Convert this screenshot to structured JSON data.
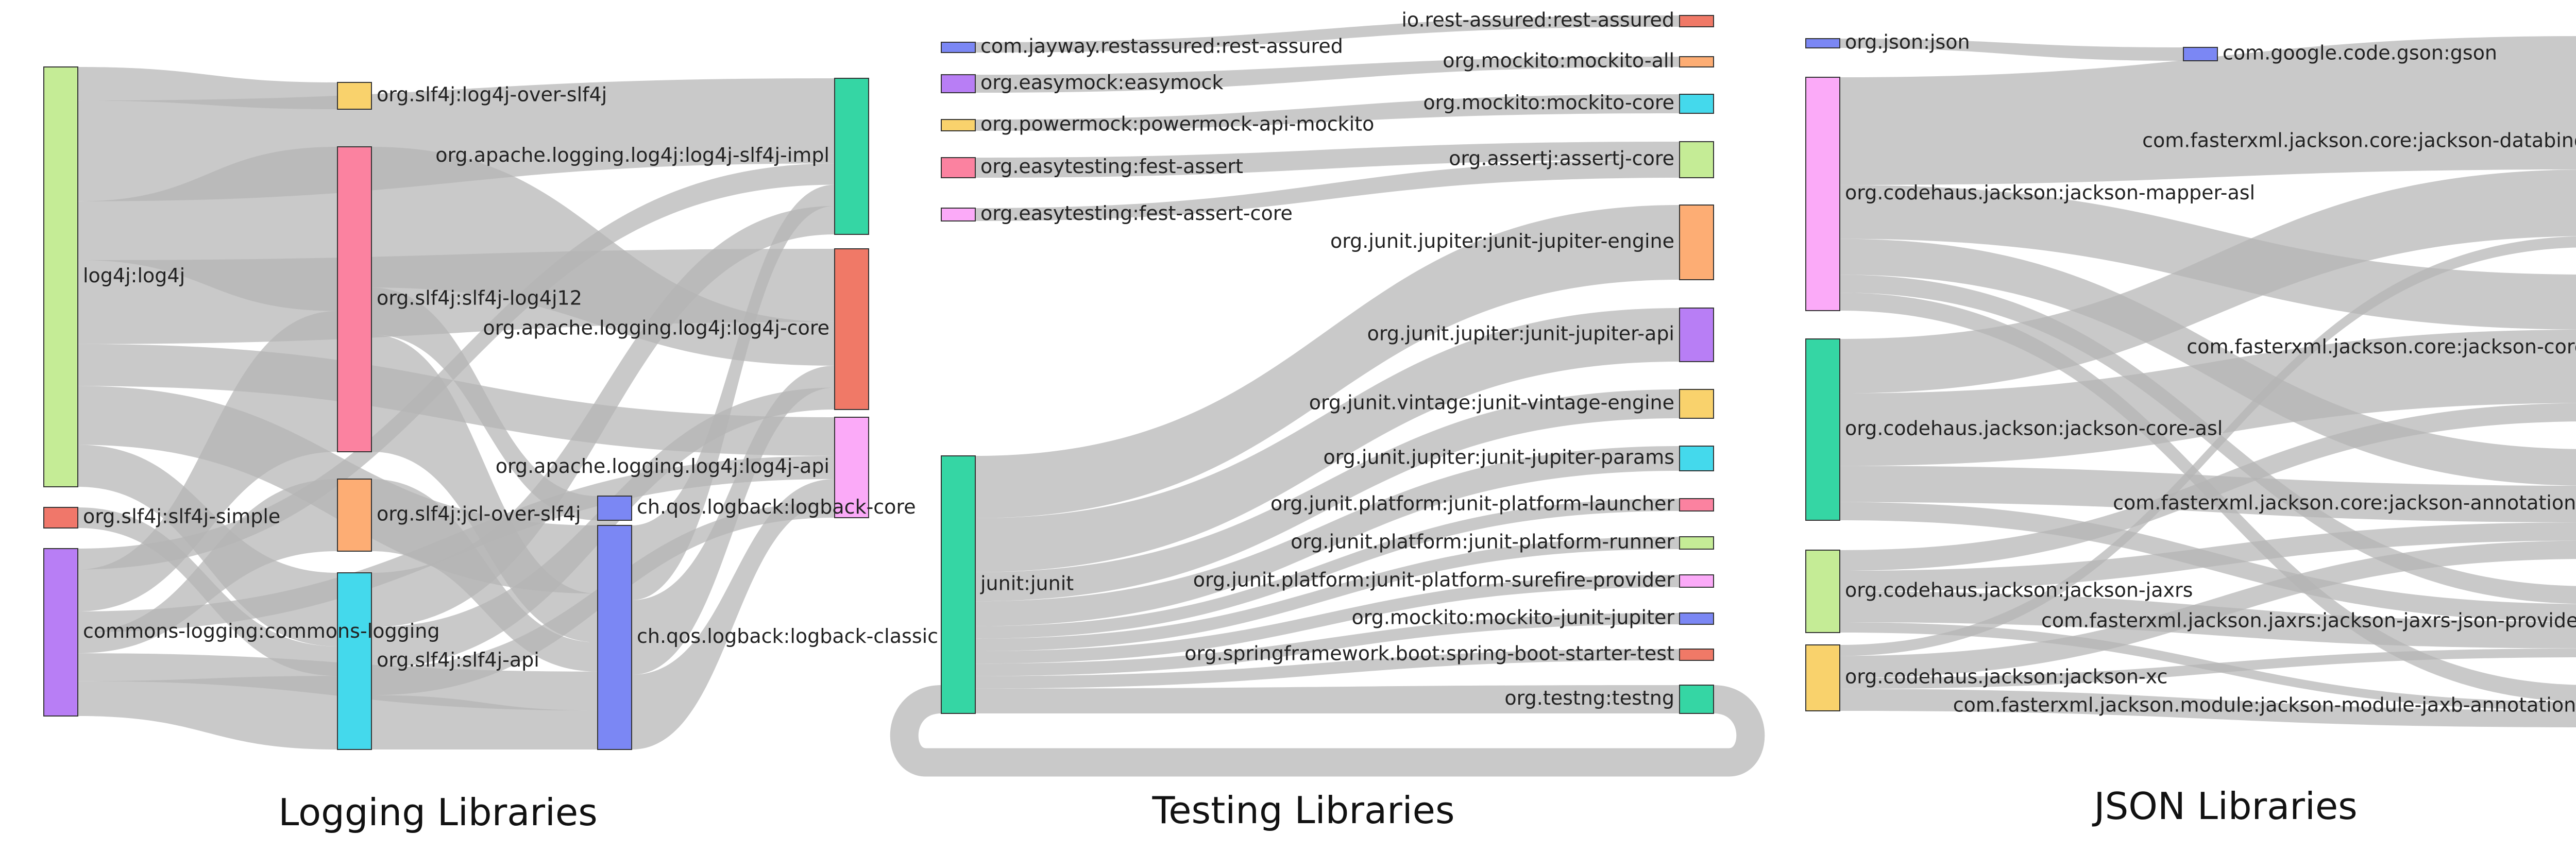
{
  "panels": [
    {
      "id": "logging",
      "title": "Logging Libraries",
      "nodes": [
        {
          "id": "l_log4j",
          "label": "log4j:log4j",
          "color": "#c5ec96",
          "col": 0
        },
        {
          "id": "l_slf4jsimple",
          "label": "org.slf4j:slf4j-simple",
          "color": "#f0776a",
          "col": 0
        },
        {
          "id": "l_jcl",
          "label": "commons-logging:commons-logging",
          "color": "#b87ef5",
          "col": 0
        },
        {
          "id": "l_log4joverslf4j",
          "label": "org.slf4j:log4j-over-slf4j",
          "color": "#f9d26c",
          "col": 1
        },
        {
          "id": "l_slf4jlog4j12",
          "label": "org.slf4j:slf4j-log4j12",
          "color": "#fb82a0",
          "col": 1
        },
        {
          "id": "l_jcloverslf4j",
          "label": "org.slf4j:jcl-over-slf4j",
          "color": "#fdad74",
          "col": 1
        },
        {
          "id": "l_slf4japi",
          "label": "org.slf4j:slf4j-api",
          "color": "#44d9ec",
          "col": 1
        },
        {
          "id": "l_logbackcore",
          "label": "ch.qos.logback:logback-core",
          "color": "#7b87f4",
          "col": 2
        },
        {
          "id": "l_logbackclassic",
          "label": "ch.qos.logback:logback-classic",
          "color": "#7b87f4",
          "col": 2
        },
        {
          "id": "l_log4jslf4jimpl",
          "label": "org.apache.logging.log4j:log4j-slf4j-impl",
          "color": "#35d6a4",
          "col": 3
        },
        {
          "id": "l_log4jcore",
          "label": "org.apache.logging.log4j:log4j-core",
          "color": "#f07967",
          "col": 3
        },
        {
          "id": "l_log4japi",
          "label": "org.apache.logging.log4j:log4j-api",
          "color": "#fbaaf8",
          "col": 3
        }
      ],
      "links": [
        {
          "source": "l_log4j",
          "target": "l_log4jslf4jimpl",
          "value": 12
        },
        {
          "source": "l_log4j",
          "target": "l_log4joverslf4j",
          "value": 4
        },
        {
          "source": "l_log4j",
          "target": "l_log4jcore",
          "value": 10
        },
        {
          "source": "l_log4j",
          "target": "l_slf4jlog4j12",
          "value": 7
        },
        {
          "source": "l_log4j",
          "target": "l_log4japi",
          "value": 5
        },
        {
          "source": "l_log4j",
          "target": "l_logbackclassic",
          "value": 7
        },
        {
          "source": "l_log4j",
          "target": "l_slf4japi",
          "value": 5
        },
        {
          "source": "l_slf4jsimple",
          "target": "l_slf4japi",
          "value": 2
        },
        {
          "source": "l_jcl",
          "target": "l_slf4jlog4j12",
          "value": 6
        },
        {
          "source": "l_jcl",
          "target": "l_log4jslf4jimpl",
          "value": 3
        },
        {
          "source": "l_jcl",
          "target": "l_jcloverslf4j",
          "value": 3
        },
        {
          "source": "l_jcl",
          "target": "l_logbackclassic",
          "value": 4
        },
        {
          "source": "l_jcl",
          "target": "l_slf4japi",
          "value": 5
        },
        {
          "source": "l_jcl",
          "target": "l_log4japi",
          "value": 3
        },
        {
          "source": "l_slf4jlog4j12",
          "target": "l_log4jcore",
          "value": 6
        },
        {
          "source": "l_slf4jlog4j12",
          "target": "l_logbackcore",
          "value": 2
        },
        {
          "source": "l_slf4jlog4j12",
          "target": "l_logbackclassic",
          "value": 5
        },
        {
          "source": "l_jcloverslf4j",
          "target": "l_logbackclassic",
          "value": 3
        },
        {
          "source": "l_slf4japi",
          "target": "l_log4jslf4jimpl",
          "value": 4
        },
        {
          "source": "l_slf4japi",
          "target": "l_log4jcore",
          "value": 3
        },
        {
          "source": "l_slf4japi",
          "target": "l_logbackclassic",
          "value": 4
        },
        {
          "source": "l_slf4japi",
          "target": "l_log4japi",
          "value": 2
        },
        {
          "source": "l_logbackclassic",
          "target": "l_log4jslf4jimpl",
          "value": 3
        },
        {
          "source": "l_logbackclassic",
          "target": "l_log4jcore",
          "value": 3
        },
        {
          "source": "l_logbackclassic",
          "target": "l_log4japi",
          "value": 3
        }
      ]
    },
    {
      "id": "testing",
      "title": "Testing Libraries",
      "nodes": [
        {
          "id": "t_restassured",
          "label": "com.jayway.restassured:rest-assured",
          "color": "#7b87f4",
          "col": 0
        },
        {
          "id": "t_easymock",
          "label": "org.easymock:easymock",
          "color": "#b87ef5",
          "col": 0
        },
        {
          "id": "t_powermock",
          "label": "org.powermock:powermock-api-mockito",
          "color": "#f9d26c",
          "col": 0
        },
        {
          "id": "t_festassert",
          "label": "org.easytesting:fest-assert",
          "color": "#fb82a0",
          "col": 0
        },
        {
          "id": "t_festassertcore",
          "label": "org.easytesting:fest-assert-core",
          "color": "#fbaaf8",
          "col": 0
        },
        {
          "id": "t_junit",
          "label": "junit:junit",
          "color": "#35d6a4",
          "col": 0
        },
        {
          "id": "t_ioresassured",
          "label": "io.rest-assured:rest-assured",
          "color": "#f07967",
          "col": 1
        },
        {
          "id": "t_mockitoall",
          "label": "org.mockito:mockito-all",
          "color": "#fdad74",
          "col": 1
        },
        {
          "id": "t_mockitocore",
          "label": "org.mockito:mockito-core",
          "color": "#44d9ec",
          "col": 1
        },
        {
          "id": "t_assertj",
          "label": "org.assertj:assertj-core",
          "color": "#c5ec96",
          "col": 1
        },
        {
          "id": "t_jupiterengine",
          "label": "org.junit.jupiter:junit-jupiter-engine",
          "color": "#fdad74",
          "col": 1
        },
        {
          "id": "t_jupiterapi",
          "label": "org.junit.jupiter:junit-jupiter-api",
          "color": "#b87ef5",
          "col": 1
        },
        {
          "id": "t_vintage",
          "label": "org.junit.vintage:junit-vintage-engine",
          "color": "#f9d26c",
          "col": 1
        },
        {
          "id": "t_jupiterparams",
          "label": "org.junit.jupiter:junit-jupiter-params",
          "color": "#44d9ec",
          "col": 1
        },
        {
          "id": "t_launcher",
          "label": "org.junit.platform:junit-platform-launcher",
          "color": "#fb82a0",
          "col": 1
        },
        {
          "id": "t_runner",
          "label": "org.junit.platform:junit-platform-runner",
          "color": "#c5ec96",
          "col": 1
        },
        {
          "id": "t_surefire",
          "label": "org.junit.platform:junit-platform-surefire-provider",
          "color": "#fbaaf8",
          "col": 1
        },
        {
          "id": "t_mockitojupiter",
          "label": "org.mockito:mockito-junit-jupiter",
          "color": "#7b87f4",
          "col": 1
        },
        {
          "id": "t_springtest",
          "label": "org.springframework.boot:spring-boot-starter-test",
          "color": "#f07967",
          "col": 1
        },
        {
          "id": "t_testng",
          "label": "org.testng:testng",
          "color": "#35d6a4",
          "col": 1
        }
      ],
      "links": [
        {
          "source": "t_restassured",
          "target": "t_ioresassured",
          "value": 1
        },
        {
          "source": "t_easymock",
          "target": "t_mockitoall",
          "value": 1
        },
        {
          "source": "t_powermock",
          "target": "t_mockitocore",
          "value": 1
        },
        {
          "source": "t_festassert",
          "target": "t_assertj",
          "value": 1
        },
        {
          "source": "t_festassertcore",
          "target": "t_assertj",
          "value": 1
        },
        {
          "source": "t_junit",
          "target": "t_jupiterengine",
          "value": 3
        },
        {
          "source": "t_junit",
          "target": "t_jupiterapi",
          "value": 2.6
        },
        {
          "source": "t_junit",
          "target": "t_vintage",
          "value": 1.4
        },
        {
          "source": "t_junit",
          "target": "t_jupiterparams",
          "value": 1.2
        },
        {
          "source": "t_junit",
          "target": "t_launcher",
          "value": 0.6
        },
        {
          "source": "t_junit",
          "target": "t_runner",
          "value": 0.6
        },
        {
          "source": "t_junit",
          "target": "t_surefire",
          "value": 0.6
        },
        {
          "source": "t_junit",
          "target": "t_mockitojupiter",
          "value": 0.6
        },
        {
          "source": "t_junit",
          "target": "t_springtest",
          "value": 0.6
        },
        {
          "source": "t_junit",
          "target": "t_testng",
          "value": 1.2
        }
      ],
      "loop": {
        "source": "t_testng",
        "target": "t_junit",
        "value": 1.2
      }
    },
    {
      "id": "json",
      "title": "JSON Libraries",
      "nodes": [
        {
          "id": "j_orgjson",
          "label": "org.json:json",
          "color": "#7b87f4",
          "col": 0
        },
        {
          "id": "j_mapperasl",
          "label": "org.codehaus.jackson:jackson-mapper-asl",
          "color": "#fbaaf8",
          "col": 0
        },
        {
          "id": "j_coreasl",
          "label": "org.codehaus.jackson:jackson-core-asl",
          "color": "#35d6a4",
          "col": 0
        },
        {
          "id": "j_jaxrs",
          "label": "org.codehaus.jackson:jackson-jaxrs",
          "color": "#c5ec96",
          "col": 0
        },
        {
          "id": "j_xc",
          "label": "org.codehaus.jackson:jackson-xc",
          "color": "#f9d26c",
          "col": 0
        },
        {
          "id": "j_gson",
          "label": "com.google.code.gson:gson",
          "color": "#7b87f4",
          "col": 1
        },
        {
          "id": "j_databind",
          "label": "com.fasterxml.jackson.core:jackson-databind",
          "color": "#f07967",
          "col": 2
        },
        {
          "id": "j_core",
          "label": "com.fasterxml.jackson.core:jackson-core",
          "color": "#fdad74",
          "col": 2
        },
        {
          "id": "j_annotations",
          "label": "com.fasterxml.jackson.core:jackson-annotations",
          "color": "#b87ef5",
          "col": 2
        },
        {
          "id": "j_jsonprovider",
          "label": "com.fasterxml.jackson.jaxrs:jackson-jaxrs-json-provider",
          "color": "#44d9ec",
          "col": 2
        },
        {
          "id": "j_jaxbannotations",
          "label": "com.fasterxml.jackson.module:jackson-module-jaxb-annotations",
          "color": "#fb82a0",
          "col": 2
        }
      ],
      "links": [
        {
          "source": "j_orgjson",
          "target": "j_gson",
          "value": 1
        },
        {
          "source": "j_mapperasl",
          "target": "j_databind",
          "value": 6
        },
        {
          "source": "j_mapperasl",
          "target": "j_core",
          "value": 3
        },
        {
          "source": "j_mapperasl",
          "target": "j_annotations",
          "value": 2
        },
        {
          "source": "j_mapperasl",
          "target": "j_jsonprovider",
          "value": 1
        },
        {
          "source": "j_mapperasl",
          "target": "j_jaxbannotations",
          "value": 1
        },
        {
          "source": "j_coreasl",
          "target": "j_databind",
          "value": 3
        },
        {
          "source": "j_coreasl",
          "target": "j_core",
          "value": 4
        },
        {
          "source": "j_coreasl",
          "target": "j_annotations",
          "value": 2
        },
        {
          "source": "j_coreasl",
          "target": "j_jsonprovider",
          "value": 1
        },
        {
          "source": "j_jaxrs",
          "target": "j_core",
          "value": 1
        },
        {
          "source": "j_jaxrs",
          "target": "j_annotations",
          "value": 1
        },
        {
          "source": "j_jaxrs",
          "target": "j_jsonprovider",
          "value": 1.5
        },
        {
          "source": "j_jaxrs",
          "target": "j_jaxbannotations",
          "value": 0.5
        },
        {
          "source": "j_xc",
          "target": "j_databind",
          "value": 0.5
        },
        {
          "source": "j_xc",
          "target": "j_annotations",
          "value": 1
        },
        {
          "source": "j_xc",
          "target": "j_jsonprovider",
          "value": 0.5
        },
        {
          "source": "j_xc",
          "target": "j_jaxbannotations",
          "value": 1
        }
      ]
    }
  ]
}
